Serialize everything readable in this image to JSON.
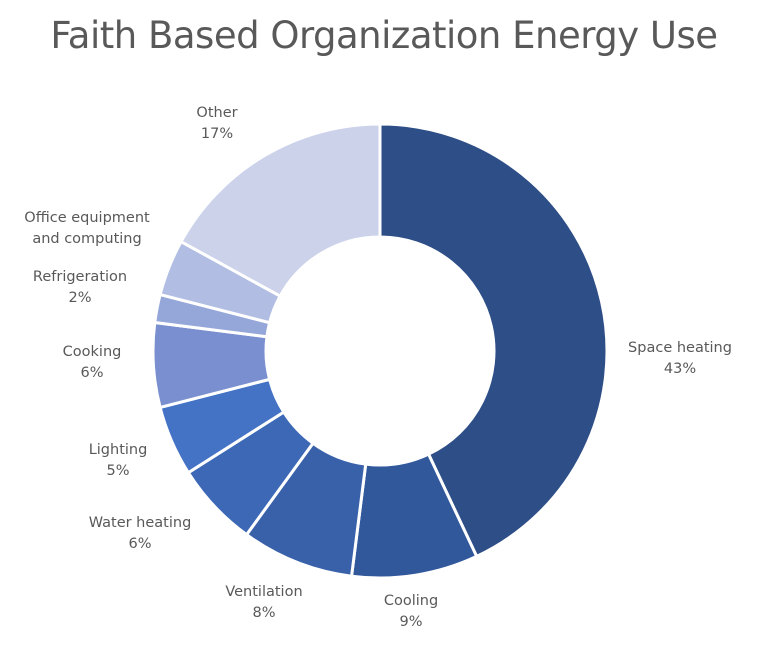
{
  "chart_data": {
    "type": "pie",
    "variant": "donut",
    "title": "Faith Based Organization Energy Use",
    "legend": "none",
    "slices": [
      {
        "label": "Space heating",
        "value": 43,
        "value_label": "43%",
        "color": "#2e4e87"
      },
      {
        "label": "Cooling",
        "value": 9,
        "value_label": "9%",
        "color": "#32589c"
      },
      {
        "label": "Ventilation",
        "value": 8,
        "value_label": "8%",
        "color": "#3961aa"
      },
      {
        "label": "Water heating",
        "value": 6,
        "value_label": "6%",
        "color": "#3c68b6"
      },
      {
        "label": "Lighting",
        "value": 5,
        "value_label": "5%",
        "color": "#4472c4"
      },
      {
        "label": "Cooking",
        "value": 6,
        "value_label": "6%",
        "color": "#7a8fcf"
      },
      {
        "label": "Refrigeration",
        "value": 2,
        "value_label": "2%",
        "color": "#95a6d9"
      },
      {
        "label": "Office equipment and computing",
        "value": 4,
        "value_label": "",
        "color": "#b1bde2"
      },
      {
        "label": "Other",
        "value": 17,
        "value_label": "17%",
        "color": "#cbd2ea"
      }
    ]
  }
}
